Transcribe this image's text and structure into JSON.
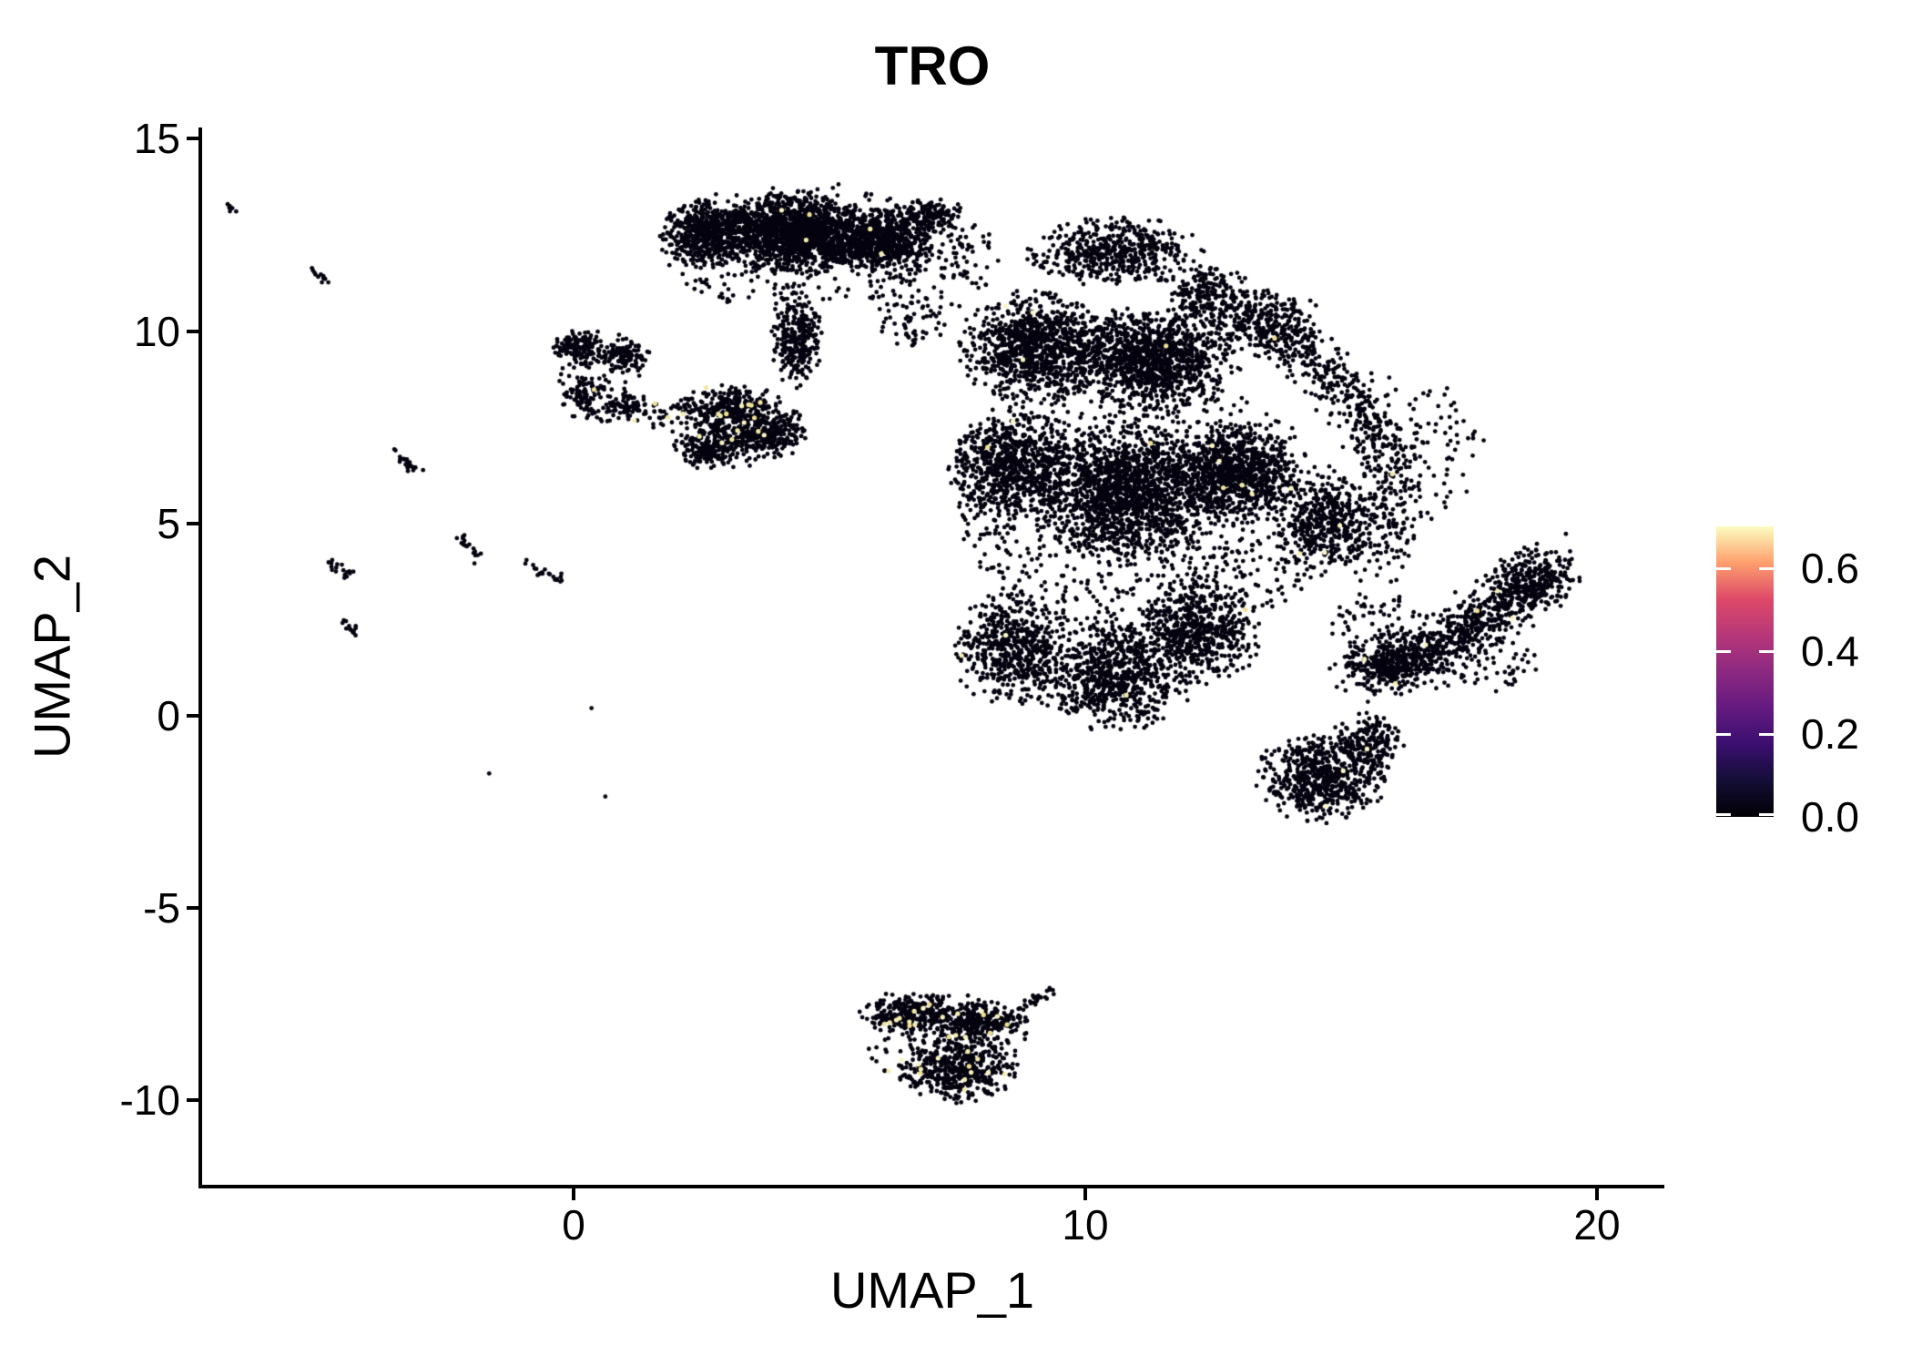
{
  "title": "TRO",
  "axes": {
    "x": {
      "label": "UMAP_1",
      "tick_labels": [
        "0",
        "10",
        "20"
      ],
      "tick_values": [
        0,
        10,
        20
      ]
    },
    "y": {
      "label": "UMAP_2",
      "tick_labels": [
        "15",
        "10",
        "5",
        "0",
        "-5",
        "-10"
      ],
      "tick_values": [
        15,
        10,
        5,
        0,
        -5,
        -10
      ]
    }
  },
  "legend": {
    "tick_labels": [
      "0.6",
      "0.4",
      "0.2",
      "0.0"
    ],
    "tick_values": [
      0.6,
      0.4,
      0.2,
      0.0
    ],
    "vmax": 0.7,
    "colormap": "magma",
    "gradient": [
      [
        "0.000",
        "#000004"
      ],
      [
        "0.125",
        "#140e36"
      ],
      [
        "0.250",
        "#3b0f70"
      ],
      [
        "0.375",
        "#641a80"
      ],
      [
        "0.500",
        "#8c2981"
      ],
      [
        "0.625",
        "#b73779"
      ],
      [
        "0.750",
        "#de4968"
      ],
      [
        "0.875",
        "#fe9f6d"
      ],
      [
        "1.000",
        "#fcfdbf"
      ]
    ]
  },
  "chart_data": {
    "type": "scatter",
    "title": "TRO",
    "xlabel": "UMAP_1",
    "ylabel": "UMAP_2",
    "xlim": [
      -8.3,
      21.3
    ],
    "ylim": [
      -12.3,
      15.3
    ],
    "x_ticks": [
      0,
      10,
      20
    ],
    "y_ticks": [
      15,
      10,
      5,
      0,
      -5,
      -10
    ],
    "grid": false,
    "legend_position": "right",
    "zero_color": "#05030f",
    "positive_colors": [
      "#f4eeb0",
      "#f0e8a4",
      "#f9f4c2",
      "#efe093"
    ],
    "point_radius_px": 2.4,
    "groups": [
      {
        "name": "top-cluster",
        "pos_n": 5,
        "blobs": [
          {
            "kind": "g",
            "cx": 2.6,
            "cy": 12.55,
            "rx": 0.85,
            "ry": 0.8,
            "n": 520
          },
          {
            "kind": "g",
            "cx": 4.3,
            "cy": 12.55,
            "rx": 1.35,
            "ry": 0.95,
            "n": 1500
          },
          {
            "kind": "g",
            "cx": 5.95,
            "cy": 12.35,
            "rx": 1.05,
            "ry": 0.8,
            "n": 750
          },
          {
            "kind": "g",
            "cx": 6.95,
            "cy": 13.0,
            "rx": 0.6,
            "ry": 0.45,
            "n": 150
          },
          {
            "kind": "g",
            "cx": 4.35,
            "cy": 9.8,
            "rx": 0.45,
            "ry": 1.15,
            "n": 280
          },
          {
            "kind": "u",
            "cx": 4.4,
            "cy": 12.2,
            "rx": 2.7,
            "ry": 1.7,
            "n": 240
          },
          {
            "kind": "u",
            "cx": 6.7,
            "cy": 10.6,
            "rx": 0.9,
            "ry": 1.1,
            "n": 90
          },
          {
            "kind": "u",
            "cx": 7.7,
            "cy": 11.9,
            "rx": 0.6,
            "ry": 0.9,
            "n": 60
          }
        ]
      },
      {
        "name": "left-small-cluster",
        "pos_n": 2,
        "blobs": [
          {
            "kind": "g",
            "cx": 0.1,
            "cy": 9.55,
            "rx": 0.5,
            "ry": 0.5,
            "n": 140
          },
          {
            "kind": "g",
            "cx": 0.95,
            "cy": 9.3,
            "rx": 0.5,
            "ry": 0.42,
            "n": 100
          },
          {
            "kind": "g",
            "cx": 0.15,
            "cy": 8.35,
            "rx": 0.48,
            "ry": 0.52,
            "n": 90
          },
          {
            "kind": "g",
            "cx": 1.05,
            "cy": 8.0,
            "rx": 0.48,
            "ry": 0.36,
            "n": 75
          },
          {
            "kind": "u",
            "cx": 0.55,
            "cy": 8.85,
            "rx": 0.95,
            "ry": 1.2,
            "n": 70
          }
        ]
      },
      {
        "name": "mid-small-cluster",
        "pos_n": 16,
        "blobs": [
          {
            "kind": "g",
            "cx": 3.0,
            "cy": 7.95,
            "rx": 0.85,
            "ry": 0.6,
            "n": 300
          },
          {
            "kind": "g",
            "cx": 3.65,
            "cy": 7.3,
            "rx": 0.85,
            "ry": 0.55,
            "n": 280
          },
          {
            "kind": "g",
            "cx": 2.6,
            "cy": 6.95,
            "rx": 0.6,
            "ry": 0.5,
            "n": 160
          },
          {
            "kind": "u",
            "cx": 3.25,
            "cy": 7.5,
            "rx": 1.35,
            "ry": 1.05,
            "n": 130
          }
        ]
      },
      {
        "name": "bridge",
        "pos_n": 3,
        "blobs": [
          {
            "kind": "g",
            "cx": 1.85,
            "cy": 7.85,
            "rx": 0.55,
            "ry": 0.35,
            "n": 22
          }
        ]
      },
      {
        "name": "main-cluster",
        "pos_n": 26,
        "blobs": [
          {
            "kind": "g",
            "cx": 10.6,
            "cy": 12.05,
            "rx": 1.55,
            "ry": 0.85,
            "n": 520
          },
          {
            "kind": "g",
            "cx": 12.4,
            "cy": 10.9,
            "rx": 0.8,
            "ry": 0.7,
            "n": 220
          },
          {
            "kind": "g",
            "cx": 9.0,
            "cy": 9.6,
            "rx": 1.35,
            "ry": 1.3,
            "n": 950
          },
          {
            "kind": "g",
            "cx": 11.3,
            "cy": 9.3,
            "rx": 1.55,
            "ry": 1.2,
            "n": 1150
          },
          {
            "kind": "g",
            "cx": 8.6,
            "cy": 6.5,
            "rx": 1.15,
            "ry": 1.45,
            "n": 720
          },
          {
            "kind": "g",
            "cx": 10.8,
            "cy": 5.8,
            "rx": 1.65,
            "ry": 1.65,
            "n": 1450
          },
          {
            "kind": "g",
            "cx": 12.9,
            "cy": 6.3,
            "rx": 1.2,
            "ry": 1.2,
            "n": 850
          },
          {
            "kind": "g",
            "cx": 14.7,
            "cy": 5.0,
            "rx": 0.85,
            "ry": 1.2,
            "n": 400
          },
          {
            "kind": "g",
            "cx": 8.6,
            "cy": 1.7,
            "rx": 1.05,
            "ry": 1.35,
            "n": 560
          },
          {
            "kind": "g",
            "cx": 10.6,
            "cy": 1.0,
            "rx": 1.35,
            "ry": 1.25,
            "n": 700
          },
          {
            "kind": "g",
            "cx": 12.2,
            "cy": 2.2,
            "rx": 1.15,
            "ry": 1.25,
            "n": 560
          },
          {
            "kind": "g",
            "cx": 14.6,
            "cy": -1.6,
            "rx": 1.15,
            "ry": 1.05,
            "n": 560
          },
          {
            "kind": "g",
            "cx": 15.5,
            "cy": -0.8,
            "rx": 0.65,
            "ry": 0.85,
            "n": 210
          },
          {
            "kind": "u",
            "cx": 11.2,
            "cy": 5.3,
            "rx": 3.7,
            "ry": 3.5,
            "n": 950
          },
          {
            "kind": "g",
            "cx": 13.6,
            "cy": 10.2,
            "rx": 1.0,
            "ry": 0.8,
            "n": 280
          },
          {
            "kind": "band",
            "p": [
              [
                13.8,
                9.6
              ],
              [
                16.4,
                8.4
              ],
              [
                15.9,
                3.9
              ]
            ],
            "w": 0.6,
            "n": 520
          },
          {
            "kind": "u",
            "cx": 16.9,
            "cy": 7.0,
            "rx": 0.9,
            "ry": 1.6,
            "n": 70
          },
          {
            "kind": "u",
            "cx": 15.7,
            "cy": 2.2,
            "rx": 0.9,
            "ry": 1.1,
            "n": 90
          }
        ]
      },
      {
        "name": "right-arm",
        "pos_n": 5,
        "blobs": [
          {
            "kind": "band",
            "p": [
              [
                15.4,
                1.0
              ],
              [
                17.4,
                1.9
              ],
              [
                19.1,
                3.9
              ]
            ],
            "w": 0.62,
            "n": 800
          },
          {
            "kind": "g",
            "cx": 18.7,
            "cy": 3.5,
            "rx": 0.8,
            "ry": 0.9,
            "n": 170
          },
          {
            "kind": "g",
            "cx": 16.1,
            "cy": 1.4,
            "rx": 0.95,
            "ry": 0.7,
            "n": 170
          },
          {
            "kind": "u",
            "cx": 17.6,
            "cy": 1.3,
            "rx": 1.3,
            "ry": 0.8,
            "n": 70
          }
        ]
      },
      {
        "name": "bottom-cluster",
        "pos_n": 34,
        "blobs": [
          {
            "kind": "g",
            "cx": 6.6,
            "cy": -7.75,
            "rx": 0.9,
            "ry": 0.52,
            "n": 260
          },
          {
            "kind": "g",
            "cx": 7.9,
            "cy": -7.95,
            "rx": 0.85,
            "ry": 0.5,
            "n": 270
          },
          {
            "kind": "g",
            "cx": 7.5,
            "cy": -9.15,
            "rx": 1.05,
            "ry": 0.8,
            "n": 430
          },
          {
            "kind": "u",
            "cx": 7.3,
            "cy": -8.45,
            "rx": 1.6,
            "ry": 1.25,
            "n": 120
          },
          {
            "kind": "seg",
            "a": [
              8.75,
              -7.6
            ],
            "b": [
              9.45,
              -7.15
            ],
            "jitter": 0.07,
            "n": 26
          }
        ]
      },
      {
        "name": "doublet-streaks",
        "pos_n": 0,
        "blobs": [
          {
            "kind": "seg",
            "a": [
              -6.75,
              13.25
            ],
            "b": [
              -6.55,
              13.1
            ],
            "jitter": 0.055,
            "n": 7
          },
          {
            "kind": "seg",
            "a": [
              -5.15,
              11.65
            ],
            "b": [
              -4.85,
              11.35
            ],
            "jitter": 0.055,
            "n": 11
          },
          {
            "kind": "seg",
            "a": [
              -3.55,
              6.9
            ],
            "b": [
              -3.0,
              6.25
            ],
            "jitter": 0.055,
            "n": 24
          },
          {
            "kind": "seg",
            "a": [
              -2.32,
              4.72
            ],
            "b": [
              -1.85,
              4.1
            ],
            "jitter": 0.055,
            "n": 18
          },
          {
            "kind": "seg",
            "a": [
              -4.82,
              4.05
            ],
            "b": [
              -4.3,
              3.62
            ],
            "jitter": 0.055,
            "n": 17
          },
          {
            "kind": "seg",
            "a": [
              -0.92,
              3.95
            ],
            "b": [
              -0.15,
              3.48
            ],
            "jitter": 0.055,
            "n": 22
          },
          {
            "kind": "seg",
            "a": [
              -4.55,
              2.45
            ],
            "b": [
              -4.18,
              2.1
            ],
            "jitter": 0.055,
            "n": 13
          }
        ]
      },
      {
        "name": "singleton-cells",
        "pos_n": 0,
        "blobs": [
          {
            "kind": "pts",
            "pts": [
              [
                0.35,
                0.2
              ],
              [
                -1.65,
                -1.5
              ],
              [
                0.62,
                -2.1
              ]
            ],
            "n": 3
          }
        ]
      }
    ]
  }
}
